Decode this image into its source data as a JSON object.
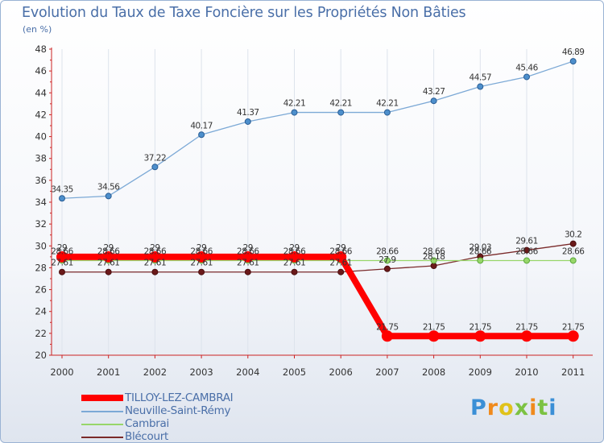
{
  "title": "Evolution du Taux de Taxe Foncière sur les Propriétés Non Bâties",
  "subtitle": "(en %)",
  "logo": "Proxiti",
  "chart_data": {
    "type": "line",
    "title": "Evolution du Taux de Taxe Foncière sur les Propriétés Non Bâties",
    "ylabel": "(en %)",
    "xlabel": "",
    "ylim": [
      20,
      48
    ],
    "yticks": [
      20,
      22,
      24,
      26,
      28,
      30,
      32,
      34,
      36,
      38,
      40,
      42,
      44,
      46,
      48
    ],
    "x": [
      "2000",
      "2001",
      "2002",
      "2003",
      "2004",
      "2005",
      "2006",
      "2007",
      "2008",
      "2009",
      "2010",
      "2011"
    ],
    "grid": "vertical",
    "series": [
      {
        "name": "TILLOY-LEZ-CAMBRAI",
        "color": "#ff0000",
        "values": [
          29,
          29,
          29,
          29,
          29,
          29,
          29,
          21.75,
          21.75,
          21.75,
          21.75,
          21.75
        ],
        "labels": [
          "29",
          "29",
          "29",
          "29",
          "29",
          "29",
          "29",
          "21.75",
          "21.75",
          "21.75",
          "21.75",
          "21.75"
        ]
      },
      {
        "name": "Neuville-Saint-Rémy",
        "color": "#7ca9d6",
        "values": [
          34.35,
          34.56,
          37.22,
          40.17,
          41.37,
          42.21,
          42.21,
          42.21,
          43.27,
          44.57,
          45.46,
          46.89
        ],
        "labels": [
          "34.35",
          "34.56",
          "37.22",
          "40.17",
          "41.37",
          "42.21",
          "42.21",
          "42.21",
          "43.27",
          "44.57",
          "45.46",
          "46.89"
        ]
      },
      {
        "name": "Cambrai",
        "color": "#98d66a",
        "values": [
          28.66,
          28.66,
          28.66,
          28.66,
          28.66,
          28.66,
          28.66,
          28.66,
          28.66,
          28.66,
          28.66,
          28.66
        ],
        "labels": [
          "28.66",
          "28.66",
          "28.66",
          "28.66",
          "28.66",
          "28.66",
          "28.66",
          "28.66",
          "28.66",
          "28.66",
          "28.66",
          "28.66"
        ]
      },
      {
        "name": "Blécourt",
        "color": "#7a2a2a",
        "values": [
          27.61,
          27.61,
          27.61,
          27.61,
          27.61,
          27.61,
          27.61,
          27.9,
          28.18,
          29.03,
          29.61,
          30.2
        ],
        "labels": [
          "27.61",
          "27.61",
          "27.61",
          "27.61",
          "27.61",
          "27.61",
          "27.61",
          "27.9",
          "28.18",
          "29.03",
          "29.61",
          "30.2"
        ]
      }
    ]
  }
}
